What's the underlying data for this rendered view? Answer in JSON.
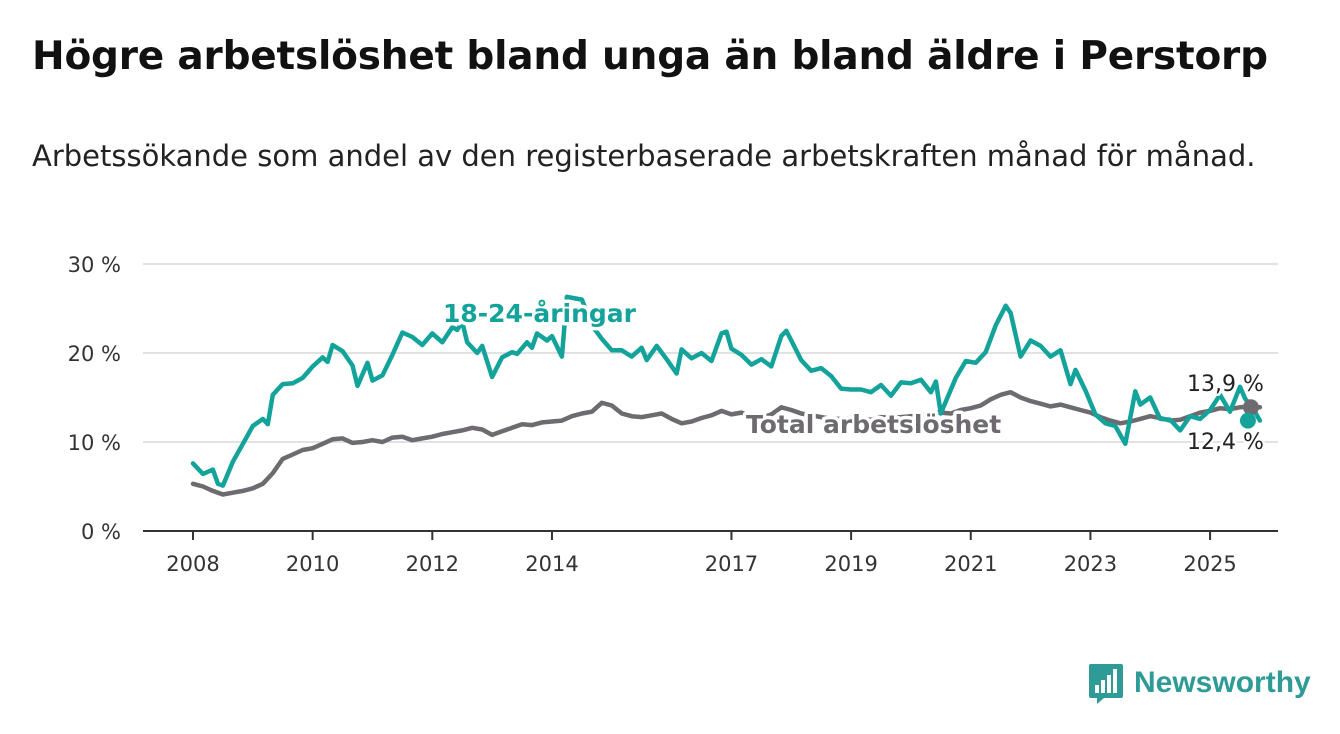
{
  "header": {
    "title": "Högre arbetslöshet bland unga än bland äldre i Perstorp",
    "subtitle": "Arbetssökande som andel av den registerbaserade arbetskraften månad för månad."
  },
  "brand": {
    "name": "Newsworthy",
    "color": "#2e9b96",
    "icon": "newsworthy-logo-icon"
  },
  "chart_data": {
    "type": "line",
    "title": "Högre arbetslöshet bland unga än bland äldre i Perstorp",
    "subtitle": "Arbetssökande som andel av den registerbaserade arbetskraften månad för månad.",
    "xlabel": "",
    "ylabel": "",
    "xlim": [
      "2008-01",
      "2025-06"
    ],
    "ylim": [
      0,
      30
    ],
    "y_ticks": [
      0,
      10,
      20,
      30
    ],
    "y_tick_labels": [
      "0 %",
      "10 %",
      "20 %",
      "30 %"
    ],
    "x_ticks": [
      "2008",
      "2010",
      "2012",
      "2014",
      "2017",
      "2019",
      "2021",
      "2023",
      "2025"
    ],
    "grid": "horizontal",
    "legend": "none",
    "series": [
      {
        "name": "18-24-åringar",
        "color": "#13a39a",
        "end_label": "12,4 %",
        "points": [
          [
            "2008-01",
            7.6
          ],
          [
            "2008-03",
            6.4
          ],
          [
            "2008-05",
            6.9
          ],
          [
            "2008-06",
            5.3
          ],
          [
            "2008-07",
            5.1
          ],
          [
            "2008-09",
            7.8
          ],
          [
            "2008-11",
            9.8
          ],
          [
            "2009-01",
            11.8
          ],
          [
            "2009-03",
            12.6
          ],
          [
            "2009-04",
            12.0
          ],
          [
            "2009-05",
            15.3
          ],
          [
            "2009-07",
            16.5
          ],
          [
            "2009-09",
            16.6
          ],
          [
            "2009-11",
            17.2
          ],
          [
            "2010-01",
            18.5
          ],
          [
            "2010-03",
            19.5
          ],
          [
            "2010-04",
            19.0
          ],
          [
            "2010-05",
            20.9
          ],
          [
            "2010-07",
            20.2
          ],
          [
            "2010-09",
            18.6
          ],
          [
            "2010-10",
            16.3
          ],
          [
            "2010-12",
            18.9
          ],
          [
            "2011-01",
            16.9
          ],
          [
            "2011-03",
            17.5
          ],
          [
            "2011-05",
            19.8
          ],
          [
            "2011-07",
            22.3
          ],
          [
            "2011-09",
            21.8
          ],
          [
            "2011-11",
            20.9
          ],
          [
            "2012-01",
            22.2
          ],
          [
            "2012-03",
            21.2
          ],
          [
            "2012-05",
            22.9
          ],
          [
            "2012-06",
            22.6
          ],
          [
            "2012-07",
            23.5
          ],
          [
            "2012-08",
            21.2
          ],
          [
            "2012-10",
            20.0
          ],
          [
            "2012-11",
            20.8
          ],
          [
            "2013-01",
            17.3
          ],
          [
            "2013-03",
            19.5
          ],
          [
            "2013-05",
            20.1
          ],
          [
            "2013-06",
            19.9
          ],
          [
            "2013-08",
            21.2
          ],
          [
            "2013-09",
            20.6
          ],
          [
            "2013-10",
            22.2
          ],
          [
            "2013-12",
            21.4
          ],
          [
            "2014-01",
            21.9
          ],
          [
            "2014-03",
            19.6
          ],
          [
            "2014-04",
            26.3
          ],
          [
            "2014-07",
            26.0
          ],
          [
            "2014-09",
            23.1
          ],
          [
            "2014-11",
            21.6
          ],
          [
            "2015-01",
            20.3
          ],
          [
            "2015-03",
            20.3
          ],
          [
            "2015-05",
            19.6
          ],
          [
            "2015-07",
            20.6
          ],
          [
            "2015-08",
            19.2
          ],
          [
            "2015-10",
            20.8
          ],
          [
            "2015-12",
            19.3
          ],
          [
            "2016-02",
            17.7
          ],
          [
            "2016-03",
            20.4
          ],
          [
            "2016-05",
            19.4
          ],
          [
            "2016-07",
            20.0
          ],
          [
            "2016-09",
            19.1
          ],
          [
            "2016-11",
            22.2
          ],
          [
            "2016-12",
            22.4
          ],
          [
            "2017-01",
            20.5
          ],
          [
            "2017-03",
            19.8
          ],
          [
            "2017-05",
            18.7
          ],
          [
            "2017-07",
            19.3
          ],
          [
            "2017-09",
            18.5
          ],
          [
            "2017-11",
            21.9
          ],
          [
            "2017-12",
            22.5
          ],
          [
            "2018-01",
            21.4
          ],
          [
            "2018-03",
            19.2
          ],
          [
            "2018-05",
            18.0
          ],
          [
            "2018-07",
            18.3
          ],
          [
            "2018-09",
            17.4
          ],
          [
            "2018-11",
            16.0
          ],
          [
            "2019-01",
            15.9
          ],
          [
            "2019-03",
            15.9
          ],
          [
            "2019-05",
            15.6
          ],
          [
            "2019-07",
            16.4
          ],
          [
            "2019-09",
            15.2
          ],
          [
            "2019-11",
            16.7
          ],
          [
            "2020-01",
            16.6
          ],
          [
            "2020-03",
            17.0
          ],
          [
            "2020-05",
            15.6
          ],
          [
            "2020-06",
            16.8
          ],
          [
            "2020-07",
            13.2
          ],
          [
            "2020-10",
            17.2
          ],
          [
            "2020-12",
            19.1
          ],
          [
            "2021-02",
            18.9
          ],
          [
            "2021-04",
            20.1
          ],
          [
            "2021-06",
            23.1
          ],
          [
            "2021-08",
            25.3
          ],
          [
            "2021-09",
            24.5
          ],
          [
            "2021-11",
            19.6
          ],
          [
            "2022-01",
            21.4
          ],
          [
            "2022-03",
            20.8
          ],
          [
            "2022-05",
            19.6
          ],
          [
            "2022-07",
            20.3
          ],
          [
            "2022-09",
            16.5
          ],
          [
            "2022-10",
            18.1
          ],
          [
            "2022-12",
            15.8
          ],
          [
            "2023-02",
            13.1
          ],
          [
            "2023-04",
            12.1
          ],
          [
            "2023-06",
            11.8
          ],
          [
            "2023-08",
            9.8
          ],
          [
            "2023-10",
            15.7
          ],
          [
            "2023-11",
            14.2
          ],
          [
            "2024-01",
            15.0
          ],
          [
            "2024-03",
            12.6
          ],
          [
            "2024-05",
            12.5
          ],
          [
            "2024-07",
            11.3
          ],
          [
            "2024-09",
            12.9
          ],
          [
            "2024-11",
            12.6
          ],
          [
            "2025-01",
            13.6
          ],
          [
            "2025-03",
            15.3
          ],
          [
            "2025-05",
            13.4
          ],
          [
            "2025-07",
            16.2
          ],
          [
            "2025-08",
            14.9
          ],
          [
            "2025-10",
            13.4
          ],
          [
            "2025-11",
            12.4
          ]
        ]
      },
      {
        "name": "Total arbetslöshet",
        "color": "#6e6b70",
        "end_label": "13,9 %",
        "points": [
          [
            "2008-01",
            5.3
          ],
          [
            "2008-03",
            5.0
          ],
          [
            "2008-05",
            4.5
          ],
          [
            "2008-07",
            4.1
          ],
          [
            "2008-09",
            4.3
          ],
          [
            "2008-11",
            4.5
          ],
          [
            "2009-01",
            4.8
          ],
          [
            "2009-03",
            5.3
          ],
          [
            "2009-05",
            6.5
          ],
          [
            "2009-07",
            8.1
          ],
          [
            "2009-09",
            8.6
          ],
          [
            "2009-11",
            9.1
          ],
          [
            "2010-01",
            9.3
          ],
          [
            "2010-03",
            9.8
          ],
          [
            "2010-05",
            10.3
          ],
          [
            "2010-07",
            10.4
          ],
          [
            "2010-09",
            9.9
          ],
          [
            "2010-11",
            10.0
          ],
          [
            "2011-01",
            10.2
          ],
          [
            "2011-03",
            10.0
          ],
          [
            "2011-05",
            10.5
          ],
          [
            "2011-07",
            10.6
          ],
          [
            "2011-09",
            10.2
          ],
          [
            "2011-11",
            10.4
          ],
          [
            "2012-01",
            10.6
          ],
          [
            "2012-03",
            10.9
          ],
          [
            "2012-05",
            11.1
          ],
          [
            "2012-07",
            11.3
          ],
          [
            "2012-09",
            11.6
          ],
          [
            "2012-11",
            11.4
          ],
          [
            "2013-01",
            10.8
          ],
          [
            "2013-03",
            11.2
          ],
          [
            "2013-05",
            11.6
          ],
          [
            "2013-07",
            12.0
          ],
          [
            "2013-09",
            11.9
          ],
          [
            "2013-11",
            12.2
          ],
          [
            "2014-01",
            12.3
          ],
          [
            "2014-03",
            12.4
          ],
          [
            "2014-05",
            12.9
          ],
          [
            "2014-07",
            13.2
          ],
          [
            "2014-09",
            13.4
          ],
          [
            "2014-11",
            14.4
          ],
          [
            "2015-01",
            14.1
          ],
          [
            "2015-03",
            13.2
          ],
          [
            "2015-05",
            12.9
          ],
          [
            "2015-07",
            12.8
          ],
          [
            "2015-09",
            13.0
          ],
          [
            "2015-11",
            13.2
          ],
          [
            "2016-01",
            12.6
          ],
          [
            "2016-03",
            12.1
          ],
          [
            "2016-05",
            12.3
          ],
          [
            "2016-07",
            12.7
          ],
          [
            "2016-09",
            13.0
          ],
          [
            "2016-11",
            13.5
          ],
          [
            "2017-01",
            13.1
          ],
          [
            "2017-03",
            13.3
          ],
          [
            "2017-05",
            12.9
          ],
          [
            "2017-07",
            12.7
          ],
          [
            "2017-09",
            13.1
          ],
          [
            "2017-11",
            13.9
          ],
          [
            "2018-01",
            13.6
          ],
          [
            "2018-03",
            13.2
          ],
          [
            "2018-05",
            13.0
          ],
          [
            "2018-07",
            12.8
          ],
          [
            "2018-09",
            12.6
          ],
          [
            "2018-11",
            12.6
          ],
          [
            "2019-01",
            12.7
          ],
          [
            "2019-03",
            12.6
          ],
          [
            "2019-05",
            12.5
          ],
          [
            "2019-07",
            12.8
          ],
          [
            "2019-09",
            12.7
          ],
          [
            "2019-11",
            12.8
          ],
          [
            "2020-01",
            12.9
          ],
          [
            "2020-03",
            13.0
          ],
          [
            "2020-05",
            13.2
          ],
          [
            "2020-07",
            13.3
          ],
          [
            "2020-09",
            13.2
          ],
          [
            "2020-11",
            13.6
          ],
          [
            "2021-01",
            13.8
          ],
          [
            "2021-03",
            14.1
          ],
          [
            "2021-05",
            14.8
          ],
          [
            "2021-07",
            15.3
          ],
          [
            "2021-09",
            15.6
          ],
          [
            "2021-11",
            15.0
          ],
          [
            "2022-01",
            14.6
          ],
          [
            "2022-03",
            14.3
          ],
          [
            "2022-05",
            14.0
          ],
          [
            "2022-07",
            14.2
          ],
          [
            "2022-09",
            13.9
          ],
          [
            "2022-11",
            13.6
          ],
          [
            "2023-01",
            13.3
          ],
          [
            "2023-03",
            12.8
          ],
          [
            "2023-05",
            12.4
          ],
          [
            "2023-07",
            12.1
          ],
          [
            "2023-09",
            12.3
          ],
          [
            "2023-11",
            12.6
          ],
          [
            "2024-01",
            12.9
          ],
          [
            "2024-03",
            12.7
          ],
          [
            "2024-05",
            12.4
          ],
          [
            "2024-07",
            12.5
          ],
          [
            "2024-09",
            12.9
          ],
          [
            "2024-11",
            13.3
          ],
          [
            "2025-01",
            13.5
          ],
          [
            "2025-03",
            13.8
          ],
          [
            "2025-05",
            13.7
          ],
          [
            "2025-07",
            13.9
          ],
          [
            "2025-09",
            14.0
          ],
          [
            "2025-11",
            13.9
          ]
        ]
      }
    ]
  }
}
